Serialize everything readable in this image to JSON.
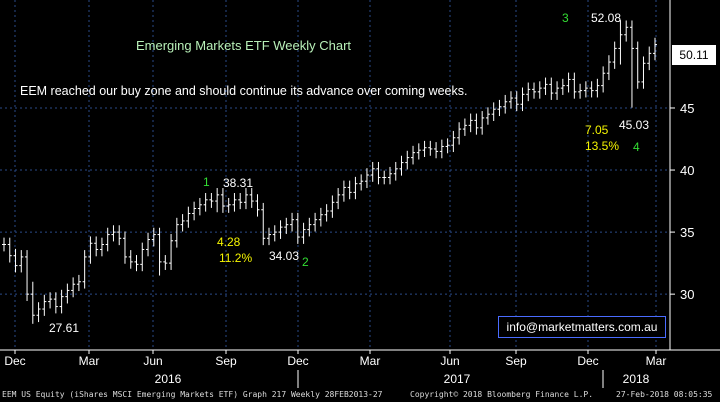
{
  "colors": {
    "background": "#000000",
    "grid": "#2a4a88",
    "bars": "#ffffff",
    "annotation_white": "#ffffff",
    "annotation_yellow": "#f5f500",
    "annotation_green": "#33dd33",
    "email_border": "#4a6cff"
  },
  "chart_data": {
    "type": "bar",
    "subtype": "ohlc-weekly",
    "title": "Emerging Markets ETF Weekly Chart",
    "subtitle": "EEM reached our buy zone and should continue its advance over coming weeks.",
    "y_ticks": [
      30,
      35,
      40,
      45
    ],
    "ylim": [
      25.5,
      53.7
    ],
    "y_axis_side": "right",
    "x_ticks": [
      "Dec",
      "Mar",
      "Jun",
      "Sep",
      "Dec",
      "Mar",
      "Jun",
      "Sep",
      "Dec",
      "Mar"
    ],
    "x_years": [
      "2016",
      "2017",
      "2018"
    ],
    "grid": true,
    "last_price": "50.11",
    "closes": [
      34.0,
      33.1,
      32.3,
      33.0,
      30.0,
      28.3,
      28.8,
      29.4,
      29.6,
      29.0,
      29.8,
      30.3,
      30.8,
      31.0,
      33.0,
      34.1,
      33.6,
      34.0,
      34.8,
      35.0,
      34.5,
      33.0,
      32.6,
      32.4,
      33.6,
      34.4,
      34.8,
      32.6,
      32.5,
      34.3,
      35.6,
      35.9,
      36.5,
      36.9,
      37.2,
      37.6,
      37.5,
      38.0,
      37.1,
      37.2,
      37.6,
      37.4,
      38.0,
      37.5,
      36.8,
      34.5,
      34.8,
      35.0,
      35.4,
      35.6,
      36.0,
      34.6,
      35.2,
      35.6,
      36.0,
      36.4,
      36.7,
      37.4,
      38.0,
      38.6,
      38.2,
      38.9,
      39.1,
      39.6,
      40.1,
      39.4,
      39.4,
      39.7,
      40.1,
      40.6,
      41.0,
      41.4,
      41.6,
      41.8,
      41.7,
      41.5,
      41.9,
      42.0,
      42.6,
      43.3,
      43.6,
      44.0,
      43.4,
      44.2,
      44.5,
      44.9,
      45.1,
      45.5,
      45.8,
      45.3,
      46.1,
      46.5,
      46.3,
      46.6,
      46.9,
      46.2,
      46.6,
      46.8,
      47.3,
      46.3,
      46.4,
      46.6,
      46.4,
      46.8,
      47.8,
      48.7,
      49.8,
      50.9,
      51.5,
      49.8,
      47.1,
      48.6,
      49.4,
      50.11
    ],
    "annotations": [
      {
        "text": "3",
        "color": "green"
      },
      {
        "text": "52.08",
        "color": "white"
      },
      {
        "text": "7.05",
        "color": "yellow"
      },
      {
        "text": "45.03",
        "color": "white"
      },
      {
        "text": "13.5%",
        "color": "yellow"
      },
      {
        "text": "4",
        "color": "green"
      },
      {
        "text": "1",
        "color": "green"
      },
      {
        "text": "38.31",
        "color": "white"
      },
      {
        "text": "4.28",
        "color": "yellow"
      },
      {
        "text": "11.2%",
        "color": "yellow"
      },
      {
        "text": "34.03",
        "color": "white"
      },
      {
        "text": "2",
        "color": "green"
      },
      {
        "text": "27.61",
        "color": "white"
      }
    ]
  },
  "overlay": {
    "email": "info@marketmatters.com.au"
  },
  "footer": {
    "left": "EEM US Equity (iShares MSCI Emerging Markets ETF) Graph 217  Weekly 28FEB2013-27",
    "middle": "Copyright© 2018 Bloomberg Finance L.P.",
    "right": "27-Feb-2018 08:05:35"
  }
}
